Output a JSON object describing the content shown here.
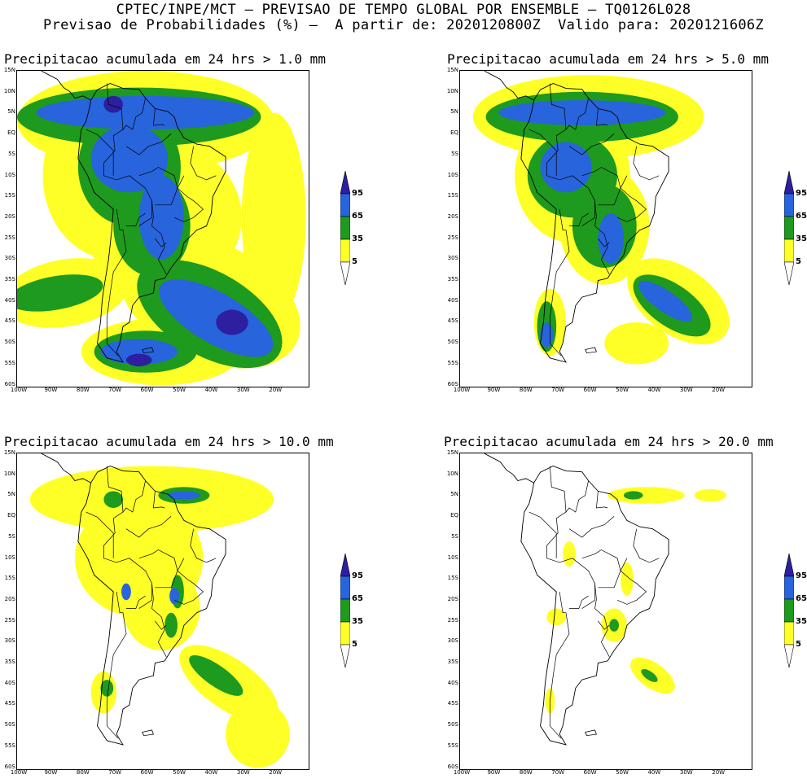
{
  "header": {
    "line1": "CPTEC/INPE/MCT — PREVISAO DE TEMPO GLOBAL POR ENSEMBLE — TQ0126L028",
    "line2": "Previsao de Probabilidades (%) —  A partir de: 2020120800Z  Valido para: 2020121606Z"
  },
  "colors": {
    "yellow": "#ffff28",
    "green": "#1e9a1e",
    "blue": "#2864dc",
    "darkblue": "#2d1fa0"
  },
  "lat_labels": [
    "15N",
    "10N",
    "5N",
    "EQ",
    "5S",
    "10S",
    "15S",
    "20S",
    "25S",
    "30S",
    "35S",
    "40S",
    "45S",
    "50S",
    "55S",
    "60S"
  ],
  "lon_labels": [
    "100W",
    "90W",
    "80W",
    "70W",
    "60W",
    "50W",
    "40W",
    "30W",
    "20W"
  ],
  "legend": {
    "labels": [
      "95",
      "65",
      "35",
      "5"
    ]
  },
  "panels": [
    {
      "title": "Precipitacao acumulada em 24 hrs > 1.0 mm",
      "threshold_mm": 1.0
    },
    {
      "title": "Precipitacao acumulada em 24 hrs > 5.0 mm",
      "threshold_mm": 5.0
    },
    {
      "title": "Precipitacao acumulada em 24 hrs > 10.0 mm",
      "threshold_mm": 10.0
    },
    {
      "title": "Precipitacao acumulada em 24 hrs > 20.0 mm",
      "threshold_mm": 20.0
    }
  ]
}
